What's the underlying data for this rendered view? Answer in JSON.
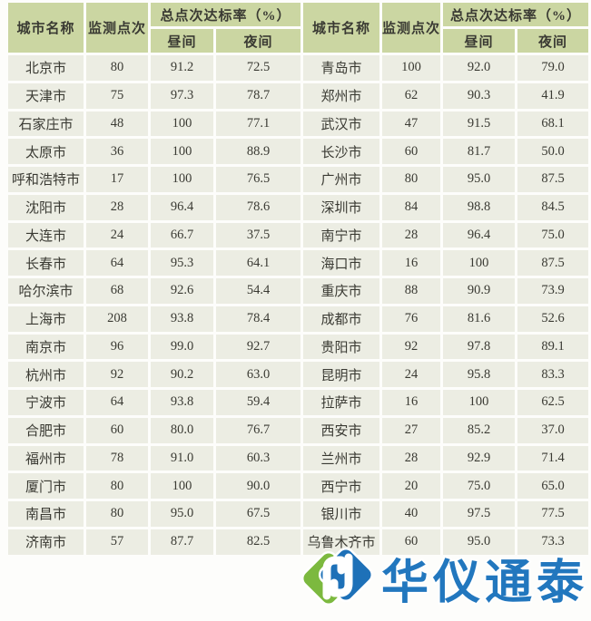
{
  "chart_data": {
    "type": "table",
    "header": {
      "city": "城市名称",
      "points": "监测点次",
      "rate": "总点次达标率（%）",
      "day": "昼间",
      "night": "夜间"
    },
    "left": [
      [
        "北京市",
        "80",
        "91.2",
        "72.5"
      ],
      [
        "天津市",
        "75",
        "97.3",
        "78.7"
      ],
      [
        "石家庄市",
        "48",
        "100",
        "77.1"
      ],
      [
        "太原市",
        "36",
        "100",
        "88.9"
      ],
      [
        "呼和浩特市",
        "17",
        "100",
        "76.5"
      ],
      [
        "沈阳市",
        "28",
        "96.4",
        "78.6"
      ],
      [
        "大连市",
        "24",
        "66.7",
        "37.5"
      ],
      [
        "长春市",
        "64",
        "95.3",
        "64.1"
      ],
      [
        "哈尔滨市",
        "68",
        "92.6",
        "54.4"
      ],
      [
        "上海市",
        "208",
        "93.8",
        "78.4"
      ],
      [
        "南京市",
        "96",
        "99.0",
        "92.7"
      ],
      [
        "杭州市",
        "92",
        "90.2",
        "63.0"
      ],
      [
        "宁波市",
        "64",
        "93.8",
        "59.4"
      ],
      [
        "合肥市",
        "60",
        "80.0",
        "76.7"
      ],
      [
        "福州市",
        "78",
        "91.0",
        "60.3"
      ],
      [
        "厦门市",
        "80",
        "100",
        "90.0"
      ],
      [
        "南昌市",
        "80",
        "95.0",
        "67.5"
      ],
      [
        "济南市",
        "57",
        "87.7",
        "82.5"
      ]
    ],
    "right": [
      [
        "青岛市",
        "100",
        "92.0",
        "79.0"
      ],
      [
        "郑州市",
        "62",
        "90.3",
        "41.9"
      ],
      [
        "武汉市",
        "47",
        "91.5",
        "68.1"
      ],
      [
        "长沙市",
        "60",
        "81.7",
        "50.0"
      ],
      [
        "广州市",
        "80",
        "95.0",
        "87.5"
      ],
      [
        "深圳市",
        "84",
        "98.8",
        "84.5"
      ],
      [
        "南宁市",
        "28",
        "96.4",
        "75.0"
      ],
      [
        "海口市",
        "16",
        "100",
        "87.5"
      ],
      [
        "重庆市",
        "88",
        "90.9",
        "73.9"
      ],
      [
        "成都市",
        "76",
        "81.6",
        "52.6"
      ],
      [
        "贵阳市",
        "92",
        "97.8",
        "89.1"
      ],
      [
        "昆明市",
        "24",
        "95.8",
        "83.3"
      ],
      [
        "拉萨市",
        "16",
        "100",
        "62.5"
      ],
      [
        "西安市",
        "27",
        "85.2",
        "37.0"
      ],
      [
        "兰州市",
        "28",
        "92.9",
        "71.4"
      ],
      [
        "西宁市",
        "20",
        "75.0",
        "65.0"
      ],
      [
        "银川市",
        "40",
        "97.5",
        "77.5"
      ],
      [
        "乌鲁木齐市",
        "60",
        "95.0",
        "73.3"
      ]
    ]
  },
  "watermark": {
    "text": "华仪通泰",
    "logo": "huayi-diamond-logo"
  },
  "colors": {
    "header_bg": "#cbd6a2",
    "row_bg": "#ecede3",
    "text": "#3a3a33",
    "watermark_blue": "#2277be",
    "logo_green": "#7cb93f",
    "logo_blue": "#1e71b8"
  }
}
